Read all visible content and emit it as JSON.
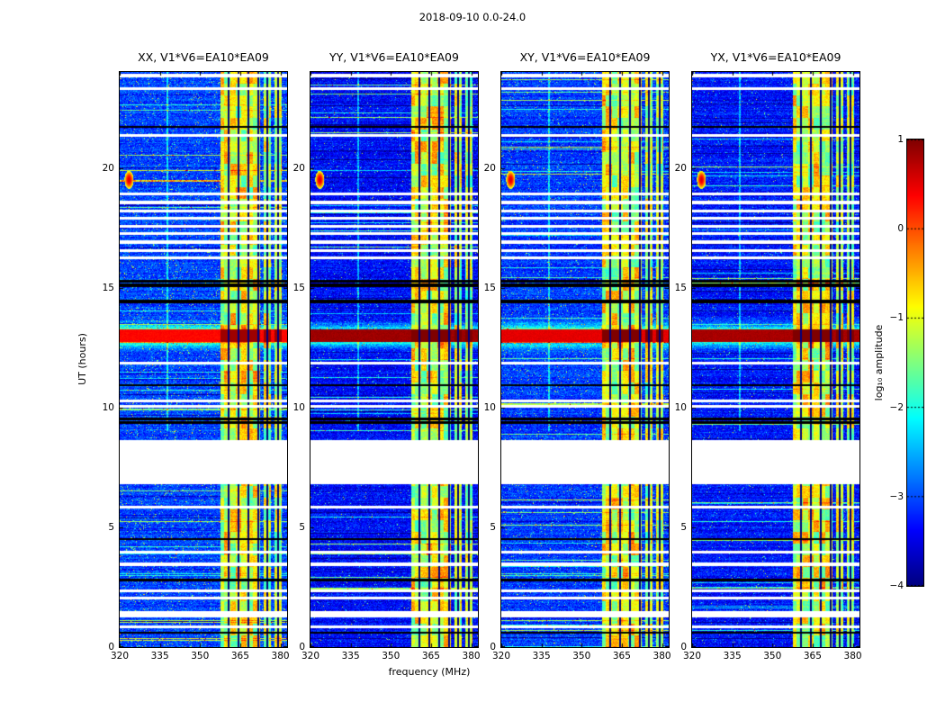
{
  "chart_data": {
    "type": "heatmap",
    "title": "2018-09-10 0.0-24.0",
    "colormap": "jet",
    "background": "#ffffff",
    "panels": [
      {
        "label": "XX, V1*V6=EA10*EA09",
        "seed": 11,
        "noise_mean": -3.05,
        "band13_level": 0.35,
        "speckle": 0.035,
        "burst_line": true
      },
      {
        "label": "YY, V1*V6=EA10*EA09",
        "seed": 22,
        "noise_mean": -3.35,
        "band13_level": 0.85,
        "speckle": 0.012,
        "burst_line": false
      },
      {
        "label": "XY, V1*V6=EA10*EA09",
        "seed": 33,
        "noise_mean": -3.1,
        "band13_level": 0.5,
        "speckle": 0.025,
        "burst_line": false
      },
      {
        "label": "YX, V1*V6=EA10*EA09",
        "seed": 44,
        "noise_mean": -3.3,
        "band13_level": 0.8,
        "speckle": 0.015,
        "burst_line": false
      }
    ],
    "xaxis": {
      "label": "frequency (MHz)",
      "min": 320,
      "max": 382.5,
      "ticks": [
        320,
        335,
        350,
        365,
        380
      ]
    },
    "yaxis": {
      "label": "UT (hours)",
      "min": 0,
      "max": 24,
      "ticks": [
        0,
        5,
        10,
        15,
        20
      ]
    },
    "colorbar": {
      "label": "log₁₀ amplitude",
      "min": -4,
      "max": 1,
      "ticks": [
        1,
        0,
        -1,
        -2,
        -3,
        -4
      ],
      "tick_labels": [
        "1",
        "0",
        "−1",
        "−2",
        "−3",
        "−4"
      ]
    },
    "features": {
      "rfi_band": {
        "fmin": 357.5,
        "fmax": 372.5
      },
      "rfi_sub_bands": [
        {
          "fmin": 373.8,
          "fmax": 376.3
        },
        {
          "fmin": 377.8,
          "fmax": 380.4
        }
      ],
      "rfi_dark_lines": [
        360.6,
        364.4,
        368.2,
        371.6,
        375.1,
        379.1
      ],
      "vertical_line": {
        "f": 337.8,
        "boost": 0.9
      },
      "gap": {
        "tmin": 6.8,
        "tmax": 8.65
      },
      "bright_band": {
        "tmin": 12.72,
        "tmax": 13.26
      },
      "burst": {
        "t": 19.5,
        "f": 323.5
      },
      "white_rows": [
        23.85,
        23.3,
        21.35,
        18.9,
        18.55,
        18.2,
        17.9,
        17.55,
        17.25,
        16.9,
        16.55,
        16.25,
        11.85,
        10.28,
        10.05,
        5.85,
        3.95,
        3.45,
        2.35,
        2.05,
        1.45,
        1.32,
        0.85
      ],
      "black_rows": [
        [
          21.66,
          21.73
        ],
        [
          15.02,
          15.16
        ],
        [
          15.2,
          15.34
        ],
        [
          14.36,
          14.5
        ],
        [
          10.9,
          10.98
        ],
        [
          9.3,
          9.42
        ],
        [
          9.46,
          9.56
        ],
        [
          4.46,
          4.54
        ],
        [
          2.76,
          2.84
        ],
        [
          0.56,
          0.64
        ]
      ]
    }
  }
}
